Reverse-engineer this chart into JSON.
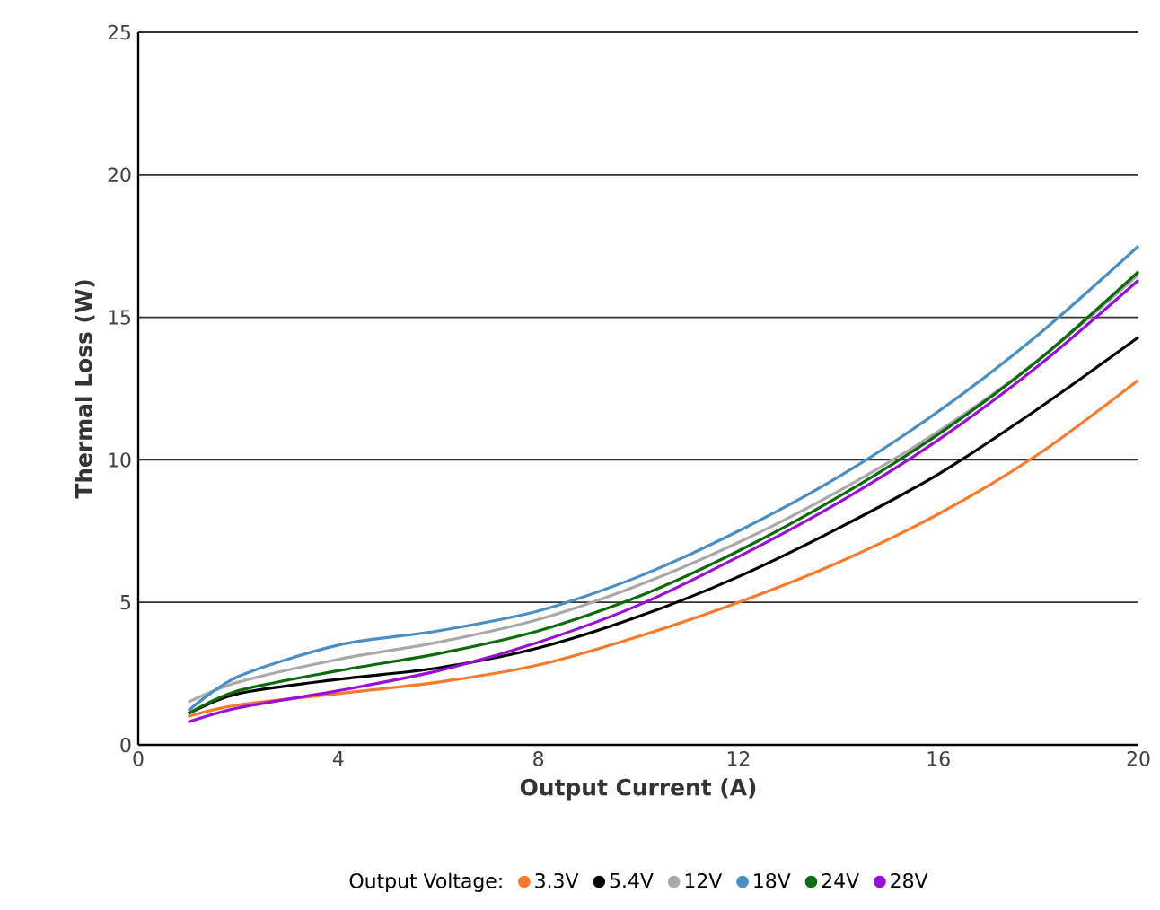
{
  "chart_data": {
    "type": "line",
    "xlabel": "Output Current (A)",
    "ylabel": "Thermal Loss (W)",
    "legend_title": "Output Voltage:",
    "x": [
      1,
      2,
      4,
      6,
      8,
      10,
      12,
      14,
      16,
      18,
      20
    ],
    "series": [
      {
        "name": "3.3V",
        "color": "#f97a2b",
        "values": [
          1.0,
          1.4,
          1.8,
          2.2,
          2.8,
          3.8,
          5.0,
          6.4,
          8.1,
          10.2,
          12.8
        ]
      },
      {
        "name": "5.4V",
        "color": "#000000",
        "values": [
          1.1,
          1.8,
          2.3,
          2.7,
          3.4,
          4.5,
          5.9,
          7.6,
          9.5,
          11.8,
          14.3
        ]
      },
      {
        "name": "12V",
        "color": "#a9a9a9",
        "values": [
          1.5,
          2.2,
          3.0,
          3.6,
          4.4,
          5.6,
          7.1,
          8.9,
          11.0,
          13.5,
          16.5
        ]
      },
      {
        "name": "18V",
        "color": "#4a8ec4",
        "values": [
          1.2,
          2.4,
          3.5,
          4.0,
          4.7,
          5.9,
          7.5,
          9.4,
          11.7,
          14.4,
          17.5
        ]
      },
      {
        "name": "24V",
        "color": "#0d6a0d",
        "values": [
          1.1,
          1.9,
          2.6,
          3.2,
          4.0,
          5.2,
          6.8,
          8.7,
          10.9,
          13.5,
          16.6
        ]
      },
      {
        "name": "28V",
        "color": "#9a0fd6",
        "values": [
          0.8,
          1.3,
          1.9,
          2.6,
          3.6,
          4.9,
          6.6,
          8.5,
          10.7,
          13.3,
          16.3
        ]
      }
    ],
    "xlim": [
      0,
      20
    ],
    "xticks": [
      0,
      4,
      8,
      12,
      16,
      20
    ],
    "ylim": [
      0,
      25
    ],
    "yticks": [
      0,
      5,
      10,
      15,
      20,
      25
    ],
    "grid": "y",
    "legend": "bottom",
    "marker": "none",
    "line_style": "solid"
  }
}
